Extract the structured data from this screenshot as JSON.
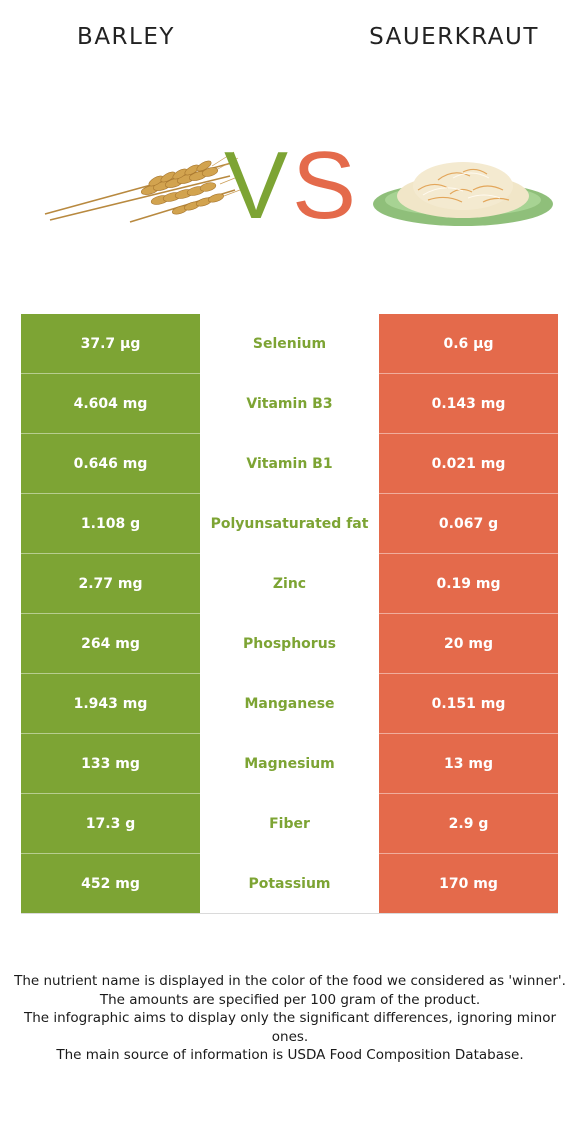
{
  "left_food": {
    "name": "BARLEY",
    "image_icon": "barley-wheat-icon"
  },
  "right_food": {
    "name": "SAUERKRAUT",
    "image_icon": "sauerkraut-plate-icon"
  },
  "vs_letters": {
    "v": "V",
    "s": "S"
  },
  "colors": {
    "left": "#7da434",
    "right": "#e46a4b",
    "winner_label": "#7da434"
  },
  "rows": [
    {
      "left": "37.7 µg",
      "nutrient": "Selenium",
      "right": "0.6 µg",
      "winner": "left"
    },
    {
      "left": "4.604 mg",
      "nutrient": "Vitamin B3",
      "right": "0.143 mg",
      "winner": "left"
    },
    {
      "left": "0.646 mg",
      "nutrient": "Vitamin B1",
      "right": "0.021 mg",
      "winner": "left"
    },
    {
      "left": "1.108 g",
      "nutrient": "Polyunsaturated fat",
      "right": "0.067 g",
      "winner": "left"
    },
    {
      "left": "2.77 mg",
      "nutrient": "Zinc",
      "right": "0.19 mg",
      "winner": "left"
    },
    {
      "left": "264 mg",
      "nutrient": "Phosphorus",
      "right": "20 mg",
      "winner": "left"
    },
    {
      "left": "1.943 mg",
      "nutrient": "Manganese",
      "right": "0.151 mg",
      "winner": "left"
    },
    {
      "left": "133 mg",
      "nutrient": "Magnesium",
      "right": "13 mg",
      "winner": "left"
    },
    {
      "left": "17.3 g",
      "nutrient": "Fiber",
      "right": "2.9 g",
      "winner": "left"
    },
    {
      "left": "452 mg",
      "nutrient": "Potassium",
      "right": "170 mg",
      "winner": "left"
    }
  ],
  "notes": [
    "The nutrient name is displayed in the color of the food we considered as 'winner'.",
    "The amounts are specified per 100 gram of the product.",
    "The infographic aims to display only the significant differences, ignoring minor ones.",
    "The main source of information is USDA Food Composition Database."
  ]
}
